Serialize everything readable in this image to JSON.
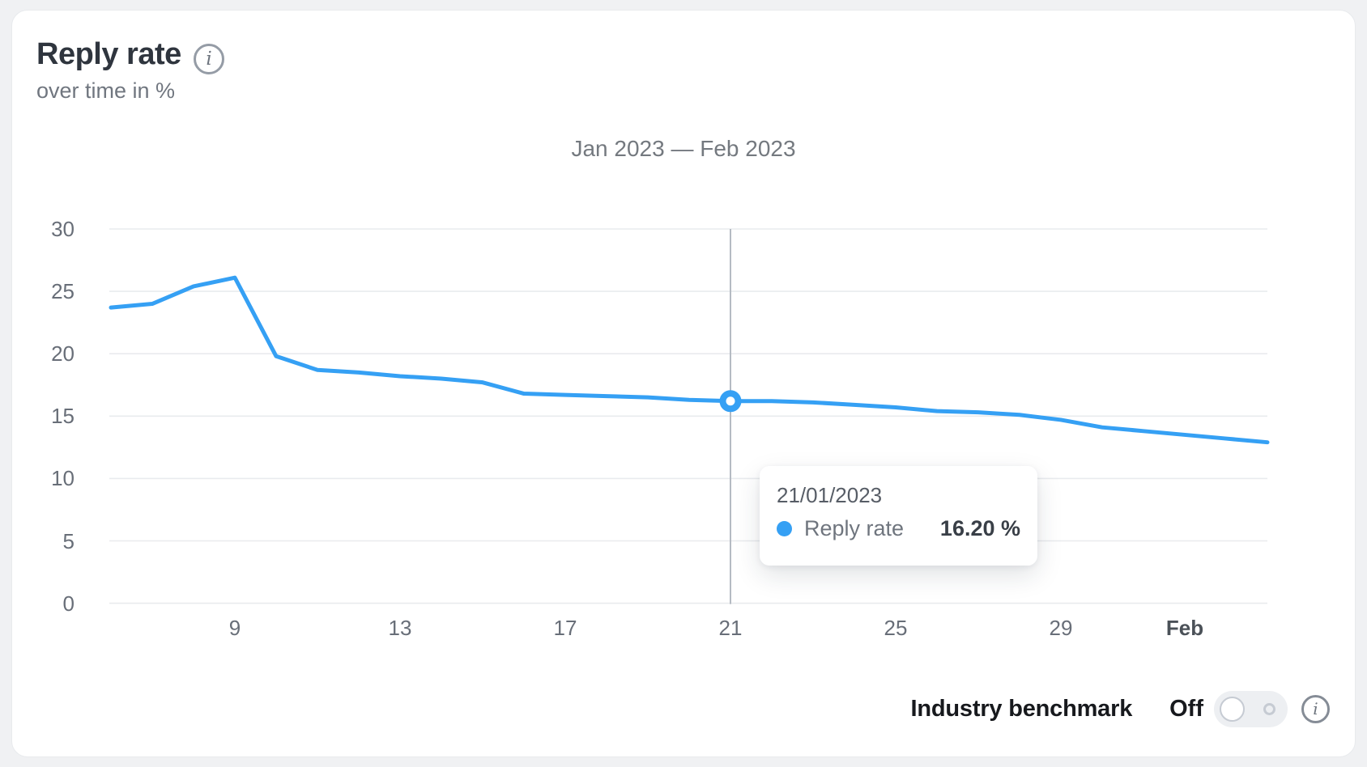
{
  "header": {
    "title": "Reply rate",
    "subtitle": "over time in %"
  },
  "icons": {
    "info_glyph": "i"
  },
  "tooltip": {
    "date": "21/01/2023",
    "series": "Reply rate",
    "value": "16.20 %"
  },
  "controls": {
    "benchmark_label": "Industry benchmark",
    "toggle_state": "Off"
  },
  "colors": {
    "line": "#35a0f4",
    "grid": "#e9ebee",
    "crosshair": "#b5bbc3",
    "marker_fill": "#ffffff"
  },
  "chart_data": {
    "type": "line",
    "title": "Jan 2023 — Feb 2023",
    "ylabel": "Reply rate over time in %",
    "ylim": [
      0,
      30
    ],
    "grid": true,
    "y_ticks": [
      30,
      25,
      20,
      15,
      10,
      5,
      0
    ],
    "x_tick_labels": [
      "9",
      "13",
      "17",
      "21",
      "25",
      "29",
      "Feb"
    ],
    "x_tick_days": [
      9,
      13,
      17,
      21,
      25,
      29,
      32
    ],
    "x_tick_bold": [
      false,
      false,
      false,
      false,
      false,
      false,
      true
    ],
    "series": [
      {
        "name": "Reply rate",
        "color": "#35a0f4",
        "start_date": "2023-01-06",
        "x_days": [
          6,
          7,
          8,
          9,
          10,
          11,
          12,
          13,
          14,
          15,
          16,
          17,
          18,
          19,
          20,
          21,
          22,
          23,
          24,
          25,
          26,
          27,
          28,
          29,
          30,
          31,
          32,
          33,
          34
        ],
        "values": [
          23.7,
          24.0,
          25.4,
          26.1,
          19.8,
          18.7,
          18.5,
          18.2,
          18.0,
          17.7,
          16.8,
          16.7,
          16.6,
          16.5,
          16.3,
          16.2,
          16.2,
          16.1,
          15.9,
          15.7,
          15.4,
          15.3,
          15.1,
          14.7,
          14.1,
          13.8,
          13.5,
          13.2,
          12.9
        ]
      }
    ],
    "highlight": {
      "day": 21,
      "value": 16.2,
      "date": "21/01/2023"
    }
  }
}
